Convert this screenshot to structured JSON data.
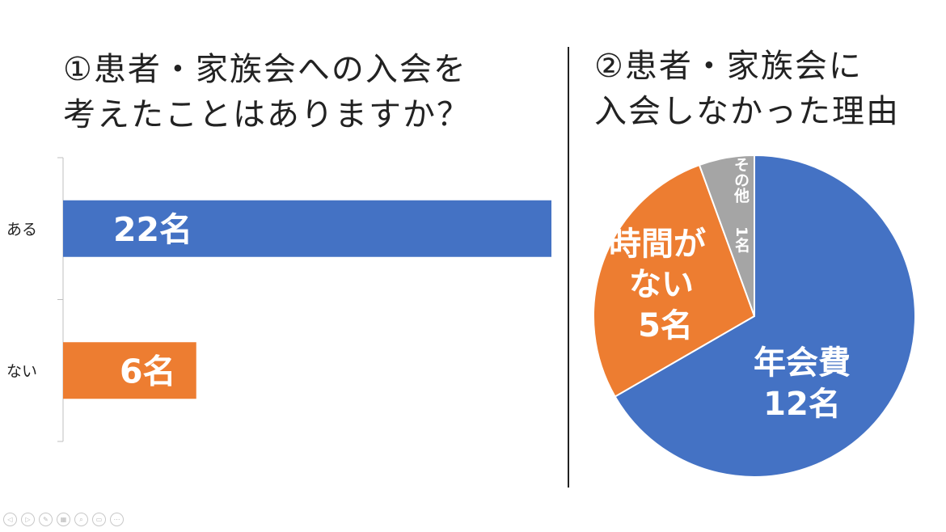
{
  "left_panel": {
    "title_line1": "①患者・家族会への入会を",
    "title_line2": "考えたことはありますか？"
  },
  "right_panel": {
    "title_line1": "②患者・家族会に",
    "title_line2": "入会しなかった理由"
  },
  "chart_data": [
    {
      "type": "bar",
      "orientation": "horizontal",
      "categories": [
        "ある",
        "ない"
      ],
      "values": [
        22,
        6
      ],
      "data_labels": [
        "22名",
        "6名"
      ],
      "colors": [
        "#4472C4",
        "#ED7D31"
      ],
      "title": "①患者・家族会への入会を考えたことはありますか？",
      "xlabel": "",
      "ylabel": "",
      "xlim": [
        0,
        22
      ],
      "grid": false
    },
    {
      "type": "pie",
      "categories": [
        "年会費",
        "時間がない",
        "その他"
      ],
      "values": [
        12,
        5,
        1
      ],
      "data_labels": [
        [
          "年会費",
          "12名"
        ],
        [
          "時間が",
          "ない",
          "5名"
        ],
        [
          "その他",
          "1名"
        ]
      ],
      "colors": [
        "#4472C4",
        "#ED7D31",
        "#A5A5A5"
      ],
      "title": "②患者・家族会に入会しなかった理由"
    }
  ],
  "toolbar": {
    "icons": [
      "prev-icon",
      "next-icon",
      "pen-icon",
      "slides-icon",
      "zoom-icon",
      "screen-icon",
      "more-icon"
    ],
    "glyphs": [
      "◁",
      "▷",
      "✎",
      "▦",
      "⌕",
      "▭",
      "⋯"
    ]
  }
}
